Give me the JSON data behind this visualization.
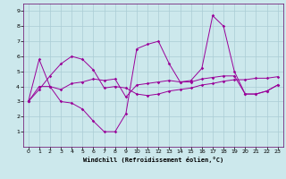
{
  "xlabel": "Windchill (Refroidissement éolien,°C)",
  "bg_color": "#cce8ec",
  "line_color": "#990099",
  "grid_color": "#aaccd4",
  "xlim": [
    -0.5,
    23.5
  ],
  "ylim": [
    0,
    9.5
  ],
  "xticks": [
    0,
    1,
    2,
    3,
    4,
    5,
    6,
    7,
    8,
    9,
    10,
    11,
    12,
    13,
    14,
    15,
    16,
    17,
    18,
    19,
    20,
    21,
    22,
    23
  ],
  "yticks": [
    1,
    2,
    3,
    4,
    5,
    6,
    7,
    8,
    9
  ],
  "line1_x": [
    0,
    1,
    2,
    3,
    4,
    5,
    6,
    7,
    8,
    9,
    10,
    11,
    12,
    13,
    14,
    15,
    16,
    17,
    18,
    19,
    20,
    21,
    22,
    23
  ],
  "line1_y": [
    3.0,
    5.8,
    4.0,
    3.0,
    2.9,
    2.5,
    1.7,
    1.0,
    1.0,
    2.2,
    6.5,
    6.8,
    7.0,
    5.5,
    4.3,
    4.4,
    5.2,
    8.7,
    8.0,
    5.0,
    3.5,
    3.5,
    3.7,
    4.1
  ],
  "line2_x": [
    0,
    1,
    2,
    3,
    4,
    5,
    6,
    7,
    8,
    9,
    10,
    11,
    12,
    13,
    14,
    15,
    16,
    17,
    18,
    19,
    20,
    21,
    22,
    23
  ],
  "line2_y": [
    3.0,
    4.0,
    4.0,
    3.8,
    4.2,
    4.3,
    4.5,
    4.4,
    4.5,
    3.3,
    4.1,
    4.2,
    4.3,
    4.4,
    4.3,
    4.3,
    4.5,
    4.6,
    4.7,
    4.7,
    3.5,
    3.5,
    3.7,
    4.1
  ],
  "line3_x": [
    0,
    1,
    2,
    3,
    4,
    5,
    6,
    7,
    8,
    9,
    10,
    11,
    12,
    13,
    14,
    15,
    16,
    17,
    18,
    19,
    20,
    21,
    22,
    23
  ],
  "line3_y": [
    3.0,
    3.8,
    4.7,
    5.5,
    6.0,
    5.8,
    5.1,
    3.9,
    4.0,
    3.9,
    3.5,
    3.4,
    3.5,
    3.7,
    3.8,
    3.9,
    4.1,
    4.2,
    4.35,
    4.45,
    4.45,
    4.55,
    4.55,
    4.65
  ],
  "marker": "D",
  "marker_size": 1.8,
  "linewidth": 0.7
}
